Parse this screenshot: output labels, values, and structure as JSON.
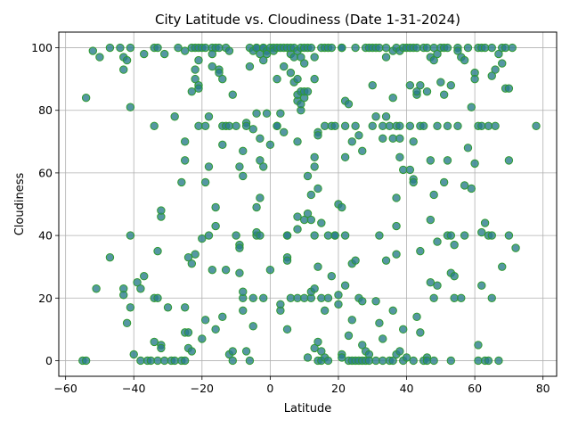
{
  "chart_data": {
    "type": "scatter",
    "title": "City Latitude vs. Cloudiness (Date 1-31-2024)",
    "xlabel": "Latitude",
    "ylabel": "Cloudiness",
    "xlim": [
      -62,
      84
    ],
    "ylim": [
      -5,
      105
    ],
    "xticks": [
      -60,
      -40,
      -20,
      0,
      20,
      40,
      60,
      80
    ],
    "yticks": [
      0,
      20,
      40,
      60,
      80,
      100
    ],
    "grid": true,
    "colors": {
      "marker_fill": "#2a7d8c",
      "marker_edge": "#2e9a2e"
    },
    "points": [
      [
        -55,
        0
      ],
      [
        -54,
        0
      ],
      [
        -54,
        84
      ],
      [
        -52,
        99
      ],
      [
        -51,
        23
      ],
      [
        -50,
        97
      ],
      [
        -47,
        100
      ],
      [
        -47,
        33
      ],
      [
        -44,
        100
      ],
      [
        -43,
        93
      ],
      [
        -43,
        97
      ],
      [
        -43,
        23
      ],
      [
        -43,
        21
      ],
      [
        -42,
        12
      ],
      [
        -42,
        96
      ],
      [
        -41,
        100
      ],
      [
        -41,
        40
      ],
      [
        -41,
        81
      ],
      [
        -41,
        17
      ],
      [
        -40,
        2
      ],
      [
        -39,
        25
      ],
      [
        -38,
        23
      ],
      [
        -38,
        0
      ],
      [
        -37,
        27
      ],
      [
        -37,
        98
      ],
      [
        -36,
        0
      ],
      [
        -35,
        0
      ],
      [
        -34,
        6
      ],
      [
        -34,
        100
      ],
      [
        -34,
        75
      ],
      [
        -34,
        20
      ],
      [
        -33,
        100
      ],
      [
        -33,
        20
      ],
      [
        -33,
        0
      ],
      [
        -33,
        35
      ],
      [
        -32,
        5
      ],
      [
        -32,
        4
      ],
      [
        -32,
        46
      ],
      [
        -32,
        48
      ],
      [
        -31,
        0
      ],
      [
        -31,
        98
      ],
      [
        -30,
        17
      ],
      [
        -29,
        0
      ],
      [
        -28,
        0
      ],
      [
        -28,
        78
      ],
      [
        -27,
        100
      ],
      [
        -26,
        57
      ],
      [
        -26,
        0
      ],
      [
        -25,
        0
      ],
      [
        -25,
        9
      ],
      [
        -25,
        17
      ],
      [
        -25,
        64
      ],
      [
        -25,
        70
      ],
      [
        -25,
        99
      ],
      [
        -24,
        33
      ],
      [
        -24,
        9
      ],
      [
        -24,
        4
      ],
      [
        -23,
        3
      ],
      [
        -23,
        100
      ],
      [
        -23,
        31
      ],
      [
        -23,
        86
      ],
      [
        -22,
        93
      ],
      [
        -22,
        90
      ],
      [
        -22,
        100
      ],
      [
        -22,
        34
      ],
      [
        -21,
        96
      ],
      [
        -21,
        88
      ],
      [
        -21,
        87
      ],
      [
        -21,
        100
      ],
      [
        -21,
        75
      ],
      [
        -20,
        7
      ],
      [
        -20,
        39
      ],
      [
        -20,
        100
      ],
      [
        -19,
        75
      ],
      [
        -19,
        57
      ],
      [
        -19,
        13
      ],
      [
        -19,
        100
      ],
      [
        -18,
        62
      ],
      [
        -18,
        78
      ],
      [
        -18,
        40
      ],
      [
        -17,
        100
      ],
      [
        -17,
        29
      ],
      [
        -17,
        94
      ],
      [
        -17,
        98
      ],
      [
        -16,
        10
      ],
      [
        -16,
        100
      ],
      [
        -16,
        49
      ],
      [
        -16,
        43
      ],
      [
        -15,
        93
      ],
      [
        -15,
        92
      ],
      [
        -15,
        100
      ],
      [
        -14,
        90
      ],
      [
        -14,
        69
      ],
      [
        -14,
        14
      ],
      [
        -14,
        75
      ],
      [
        -13,
        75
      ],
      [
        -13,
        100
      ],
      [
        -13,
        29
      ],
      [
        -12,
        99
      ],
      [
        -12,
        75
      ],
      [
        -12,
        2
      ],
      [
        -11,
        3
      ],
      [
        -11,
        0
      ],
      [
        -11,
        85
      ],
      [
        -10,
        40
      ],
      [
        -10,
        75
      ],
      [
        -9,
        37
      ],
      [
        -9,
        62
      ],
      [
        -9,
        36
      ],
      [
        -9,
        28
      ],
      [
        -8,
        59
      ],
      [
        -8,
        67
      ],
      [
        -8,
        16
      ],
      [
        -8,
        20
      ],
      [
        -8,
        22
      ],
      [
        -7,
        76
      ],
      [
        -7,
        3
      ],
      [
        -7,
        75
      ],
      [
        -6,
        94
      ],
      [
        -6,
        0
      ],
      [
        -6,
        100
      ],
      [
        -5,
        11
      ],
      [
        -5,
        74
      ],
      [
        -5,
        20
      ],
      [
        -5,
        99
      ],
      [
        -4,
        100
      ],
      [
        -4,
        40
      ],
      [
        -4,
        41
      ],
      [
        -4,
        79
      ],
      [
        -4,
        49
      ],
      [
        -4,
        100
      ],
      [
        -3,
        52
      ],
      [
        -3,
        64
      ],
      [
        -3,
        71
      ],
      [
        -3,
        40
      ],
      [
        -3,
        98
      ],
      [
        -2,
        100
      ],
      [
        -2,
        96
      ],
      [
        -2,
        62
      ],
      [
        -2,
        20
      ],
      [
        -2,
        100
      ],
      [
        -1,
        99
      ],
      [
        -1,
        98
      ],
      [
        -1,
        79
      ],
      [
        0,
        69
      ],
      [
        0,
        100
      ],
      [
        0,
        29
      ],
      [
        1,
        100
      ],
      [
        1,
        99
      ],
      [
        2,
        100
      ],
      [
        2,
        90
      ],
      [
        2,
        75
      ],
      [
        2,
        75
      ],
      [
        3,
        79
      ],
      [
        3,
        100
      ],
      [
        3,
        16
      ],
      [
        3,
        18
      ],
      [
        4,
        94
      ],
      [
        4,
        100
      ],
      [
        4,
        73
      ],
      [
        5,
        100
      ],
      [
        5,
        40
      ],
      [
        5,
        33
      ],
      [
        5,
        40
      ],
      [
        5,
        32
      ],
      [
        5,
        10
      ],
      [
        6,
        98
      ],
      [
        6,
        20
      ],
      [
        6,
        92
      ],
      [
        6,
        100
      ],
      [
        7,
        89
      ],
      [
        7,
        97
      ],
      [
        7,
        100
      ],
      [
        8,
        99
      ],
      [
        8,
        90
      ],
      [
        8,
        83
      ],
      [
        8,
        85
      ],
      [
        8,
        20
      ],
      [
        8,
        70
      ],
      [
        8,
        42
      ],
      [
        8,
        46
      ],
      [
        9,
        100
      ],
      [
        9,
        80
      ],
      [
        9,
        82
      ],
      [
        9,
        86
      ],
      [
        9,
        97
      ],
      [
        10,
        45
      ],
      [
        10,
        100
      ],
      [
        10,
        84
      ],
      [
        10,
        86
      ],
      [
        10,
        20
      ],
      [
        10,
        95
      ],
      [
        11,
        100
      ],
      [
        11,
        47
      ],
      [
        11,
        59
      ],
      [
        11,
        86
      ],
      [
        11,
        1
      ],
      [
        12,
        53
      ],
      [
        12,
        45
      ],
      [
        12,
        20
      ],
      [
        12,
        22
      ],
      [
        12,
        100
      ],
      [
        13,
        90
      ],
      [
        13,
        97
      ],
      [
        13,
        62
      ],
      [
        13,
        4
      ],
      [
        13,
        65
      ],
      [
        13,
        23
      ],
      [
        13,
        40
      ],
      [
        14,
        73
      ],
      [
        14,
        72
      ],
      [
        14,
        55
      ],
      [
        14,
        6
      ],
      [
        14,
        30
      ],
      [
        14,
        0
      ],
      [
        15,
        100
      ],
      [
        15,
        44
      ],
      [
        15,
        20
      ],
      [
        15,
        3
      ],
      [
        15,
        0
      ],
      [
        16,
        100
      ],
      [
        16,
        16
      ],
      [
        16,
        75
      ],
      [
        16,
        1
      ],
      [
        17,
        20
      ],
      [
        17,
        100
      ],
      [
        17,
        40
      ],
      [
        17,
        0
      ],
      [
        18,
        27
      ],
      [
        18,
        100
      ],
      [
        18,
        75
      ],
      [
        19,
        75
      ],
      [
        19,
        40
      ],
      [
        19,
        40
      ],
      [
        20,
        50
      ],
      [
        20,
        18
      ],
      [
        20,
        21
      ],
      [
        21,
        2
      ],
      [
        21,
        1
      ],
      [
        21,
        49
      ],
      [
        21,
        100
      ],
      [
        21,
        100
      ],
      [
        22,
        83
      ],
      [
        22,
        75
      ],
      [
        22,
        65
      ],
      [
        22,
        40
      ],
      [
        22,
        24
      ],
      [
        23,
        8
      ],
      [
        23,
        82
      ],
      [
        23,
        0
      ],
      [
        24,
        31
      ],
      [
        24,
        0
      ],
      [
        24,
        70
      ],
      [
        24,
        13
      ],
      [
        25,
        32
      ],
      [
        25,
        0
      ],
      [
        25,
        100
      ],
      [
        25,
        75
      ],
      [
        26,
        20
      ],
      [
        26,
        72
      ],
      [
        26,
        0
      ],
      [
        27,
        0
      ],
      [
        27,
        67
      ],
      [
        27,
        19
      ],
      [
        27,
        5
      ],
      [
        28,
        0
      ],
      [
        28,
        100
      ],
      [
        28,
        3
      ],
      [
        29,
        2
      ],
      [
        29,
        0
      ],
      [
        29,
        100
      ],
      [
        30,
        88
      ],
      [
        30,
        75
      ],
      [
        30,
        100
      ],
      [
        31,
        100
      ],
      [
        31,
        78
      ],
      [
        31,
        19
      ],
      [
        31,
        0
      ],
      [
        32,
        12
      ],
      [
        32,
        40
      ],
      [
        32,
        100
      ],
      [
        33,
        75
      ],
      [
        33,
        71
      ],
      [
        33,
        7
      ],
      [
        33,
        0
      ],
      [
        34,
        100
      ],
      [
        34,
        32
      ],
      [
        34,
        97
      ],
      [
        34,
        78
      ],
      [
        35,
        0
      ],
      [
        35,
        75
      ],
      [
        36,
        84
      ],
      [
        36,
        71
      ],
      [
        36,
        16
      ],
      [
        36,
        99
      ],
      [
        36,
        0
      ],
      [
        37,
        100
      ],
      [
        37,
        75
      ],
      [
        37,
        52
      ],
      [
        37,
        43
      ],
      [
        37,
        34
      ],
      [
        37,
        2
      ],
      [
        38,
        99
      ],
      [
        38,
        75
      ],
      [
        38,
        65
      ],
      [
        38,
        71
      ],
      [
        38,
        3
      ],
      [
        39,
        10
      ],
      [
        39,
        0
      ],
      [
        39,
        100
      ],
      [
        39,
        61
      ],
      [
        40,
        100
      ],
      [
        40,
        1
      ],
      [
        41,
        88
      ],
      [
        41,
        61
      ],
      [
        41,
        75
      ],
      [
        41,
        100
      ],
      [
        42,
        58
      ],
      [
        42,
        57
      ],
      [
        42,
        100
      ],
      [
        42,
        70
      ],
      [
        42,
        0
      ],
      [
        43,
        14
      ],
      [
        43,
        85
      ],
      [
        43,
        86
      ],
      [
        43,
        100
      ],
      [
        44,
        35
      ],
      [
        44,
        9
      ],
      [
        44,
        75
      ],
      [
        44,
        88
      ],
      [
        45,
        100
      ],
      [
        45,
        0
      ],
      [
        45,
        75
      ],
      [
        46,
        1
      ],
      [
        46,
        86
      ],
      [
        46,
        100
      ],
      [
        46,
        0
      ],
      [
        47,
        64
      ],
      [
        47,
        45
      ],
      [
        47,
        25
      ],
      [
        47,
        97
      ],
      [
        48,
        53
      ],
      [
        48,
        0
      ],
      [
        48,
        96
      ],
      [
        48,
        100
      ],
      [
        48,
        20
      ],
      [
        49,
        24
      ],
      [
        49,
        38
      ],
      [
        49,
        75
      ],
      [
        49,
        98
      ],
      [
        50,
        89
      ],
      [
        50,
        100
      ],
      [
        51,
        57
      ],
      [
        51,
        100
      ],
      [
        51,
        85
      ],
      [
        52,
        40
      ],
      [
        52,
        64
      ],
      [
        52,
        100
      ],
      [
        52,
        75
      ],
      [
        53,
        40
      ],
      [
        53,
        28
      ],
      [
        53,
        88
      ],
      [
        53,
        0
      ],
      [
        54,
        27
      ],
      [
        54,
        37
      ],
      [
        54,
        20
      ],
      [
        55,
        100
      ],
      [
        55,
        75
      ],
      [
        55,
        99
      ],
      [
        56,
        20
      ],
      [
        56,
        97
      ],
      [
        57,
        96
      ],
      [
        57,
        40
      ],
      [
        57,
        56
      ],
      [
        58,
        100
      ],
      [
        58,
        68
      ],
      [
        59,
        81
      ],
      [
        59,
        55
      ],
      [
        60,
        63
      ],
      [
        60,
        92
      ],
      [
        60,
        90
      ],
      [
        61,
        100
      ],
      [
        61,
        75
      ],
      [
        61,
        5
      ],
      [
        61,
        0
      ],
      [
        62,
        100
      ],
      [
        62,
        75
      ],
      [
        62,
        24
      ],
      [
        62,
        41
      ],
      [
        63,
        44
      ],
      [
        63,
        0
      ],
      [
        63,
        100
      ],
      [
        64,
        75
      ],
      [
        64,
        40
      ],
      [
        64,
        0
      ],
      [
        65,
        100
      ],
      [
        65,
        91
      ],
      [
        65,
        20
      ],
      [
        65,
        40
      ],
      [
        66,
        75
      ],
      [
        66,
        93
      ],
      [
        67,
        0
      ],
      [
        67,
        98
      ],
      [
        68,
        95
      ],
      [
        68,
        100
      ],
      [
        68,
        30
      ],
      [
        69,
        87
      ],
      [
        69,
        100
      ],
      [
        70,
        87
      ],
      [
        70,
        64
      ],
      [
        70,
        40
      ],
      [
        71,
        100
      ],
      [
        72,
        36
      ],
      [
        78,
        75
      ]
    ]
  }
}
